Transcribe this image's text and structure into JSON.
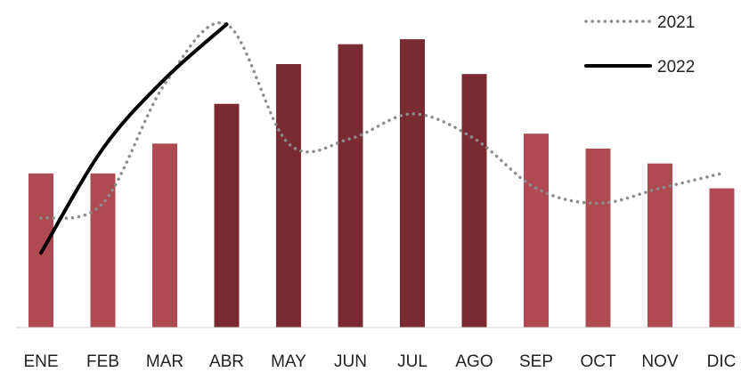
{
  "chart_data": {
    "type": "bar",
    "categories": [
      "ENE",
      "FEB",
      "MAR",
      "ABR",
      "MAY",
      "JUN",
      "JUL",
      "AGO",
      "SEP",
      "OCT",
      "NOV",
      "DIC"
    ],
    "bars": {
      "values": [
        31,
        31,
        37,
        45,
        53,
        57,
        58,
        51,
        39,
        36,
        33,
        28
      ],
      "colors": [
        "#b04a52",
        "#b04a52",
        "#b04a52",
        "#7a2a31",
        "#7a2a31",
        "#7a2a31",
        "#7a2a31",
        "#7a2a31",
        "#b04a52",
        "#b04a52",
        "#b04a52",
        "#b04a52"
      ]
    },
    "series": [
      {
        "name": "2021",
        "style": "dotted",
        "color": "#8c8c8c",
        "values": [
          22,
          25,
          49,
          61,
          37,
          38,
          43,
          38,
          28,
          25,
          28,
          31
        ]
      },
      {
        "name": "2022",
        "style": "solid",
        "color": "#000000",
        "values": [
          15,
          36,
          50,
          61,
          null,
          null,
          null,
          null,
          null,
          null,
          null,
          null
        ]
      }
    ],
    "ylim": [
      0,
      65
    ],
    "grid": false,
    "legend_position": "top-right"
  }
}
